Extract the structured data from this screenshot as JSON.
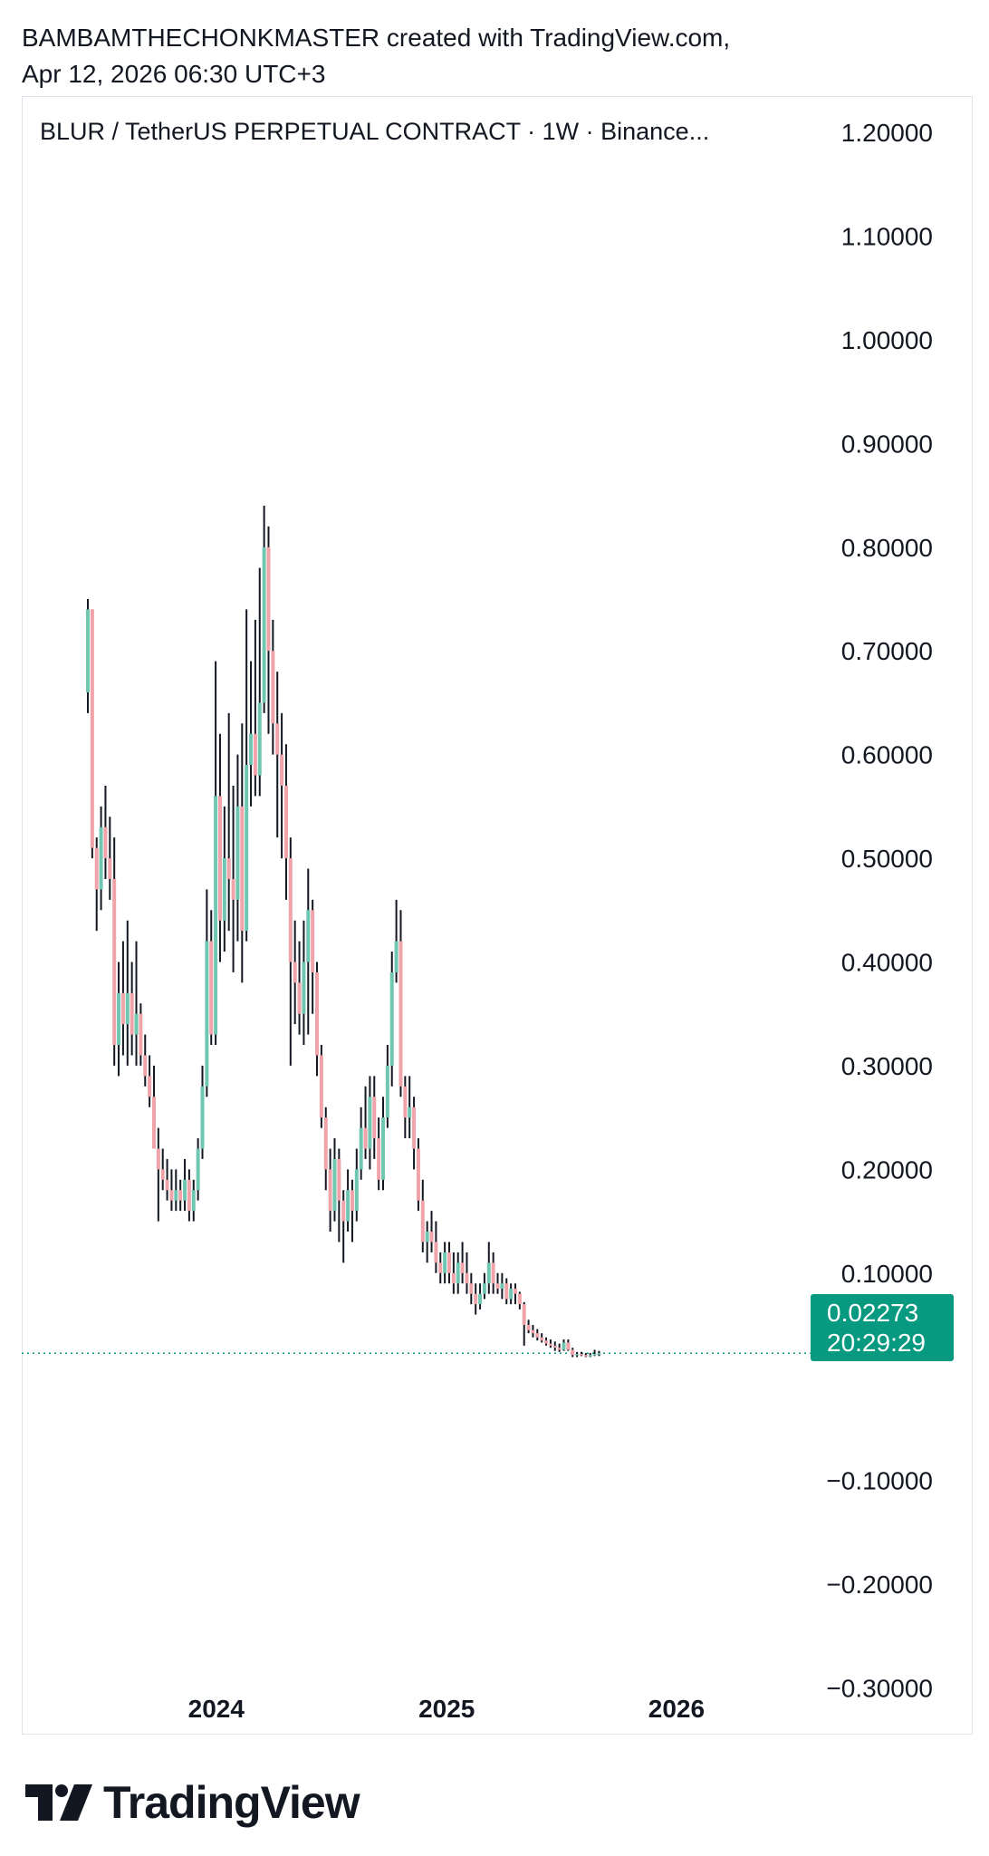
{
  "header": {
    "line1": "BAMBAMTHECHONKMASTER created with TradingView.com,",
    "line2": "Apr 12, 2026 06:30 UTC+3"
  },
  "symbol_title": "BLUR / TetherUS PERPETUAL CONTRACT · 1W · Binance...",
  "last_price": {
    "price": "0.02273",
    "countdown": "20:29:29",
    "color": "#089981"
  },
  "logo": {
    "icon": "tradingview-logo-icon",
    "text": "TradingView"
  },
  "colors": {
    "up": "#6fc7b2",
    "down": "#f0a3a8",
    "wick": "#131722",
    "last_price_line": "#089981"
  },
  "chart_data": {
    "type": "candlestick",
    "title": "BLUR / TetherUS PERPETUAL CONTRACT · 1W · Binance...",
    "interval": "1W",
    "x_tick_labels": [
      "2024",
      "2025",
      "2026"
    ],
    "x_tick_dates": [
      "2024-01-01",
      "2025-01-01",
      "2026-01-01"
    ],
    "y_tick_labels": [
      "1.20000",
      "1.10000",
      "1.00000",
      "0.90000",
      "0.80000",
      "0.70000",
      "0.60000",
      "0.50000",
      "0.40000",
      "0.30000",
      "0.20000",
      "0.10000",
      "−0.10000",
      "−0.20000",
      "−0.30000"
    ],
    "y_tick_values": [
      1.2,
      1.1,
      1.0,
      0.9,
      0.8,
      0.7,
      0.6,
      0.5,
      0.4,
      0.3,
      0.2,
      0.1,
      -0.1,
      -0.2,
      -0.3
    ],
    "ylim": [
      -0.345,
      1.235
    ],
    "xlim": [
      "2023-02-26",
      "2026-08-02"
    ],
    "grid": false,
    "first_candle_date": "2023-06-11",
    "last_price": 0.02273,
    "ohlc": [
      [
        0.66,
        0.75,
        0.64,
        0.74
      ],
      [
        0.74,
        0.74,
        0.5,
        0.51
      ],
      [
        0.51,
        0.52,
        0.43,
        0.47
      ],
      [
        0.47,
        0.55,
        0.45,
        0.53
      ],
      [
        0.53,
        0.57,
        0.48,
        0.5
      ],
      [
        0.5,
        0.54,
        0.46,
        0.48
      ],
      [
        0.48,
        0.52,
        0.3,
        0.32
      ],
      [
        0.32,
        0.4,
        0.29,
        0.37
      ],
      [
        0.37,
        0.42,
        0.31,
        0.34
      ],
      [
        0.34,
        0.44,
        0.3,
        0.37
      ],
      [
        0.37,
        0.4,
        0.31,
        0.33
      ],
      [
        0.33,
        0.42,
        0.3,
        0.35
      ],
      [
        0.35,
        0.36,
        0.3,
        0.31
      ],
      [
        0.31,
        0.33,
        0.28,
        0.29
      ],
      [
        0.29,
        0.31,
        0.26,
        0.27
      ],
      [
        0.27,
        0.3,
        0.22,
        0.22
      ],
      [
        0.22,
        0.24,
        0.15,
        0.2
      ],
      [
        0.2,
        0.22,
        0.18,
        0.19
      ],
      [
        0.19,
        0.21,
        0.17,
        0.18
      ],
      [
        0.18,
        0.2,
        0.16,
        0.17
      ],
      [
        0.17,
        0.2,
        0.16,
        0.18
      ],
      [
        0.18,
        0.19,
        0.16,
        0.17
      ],
      [
        0.17,
        0.21,
        0.16,
        0.19
      ],
      [
        0.19,
        0.2,
        0.15,
        0.16
      ],
      [
        0.16,
        0.19,
        0.15,
        0.18
      ],
      [
        0.18,
        0.23,
        0.17,
        0.22
      ],
      [
        0.22,
        0.3,
        0.21,
        0.28
      ],
      [
        0.28,
        0.47,
        0.27,
        0.42
      ],
      [
        0.42,
        0.45,
        0.32,
        0.33
      ],
      [
        0.33,
        0.69,
        0.32,
        0.56
      ],
      [
        0.56,
        0.62,
        0.4,
        0.44
      ],
      [
        0.44,
        0.55,
        0.41,
        0.5
      ],
      [
        0.5,
        0.64,
        0.43,
        0.48
      ],
      [
        0.48,
        0.57,
        0.39,
        0.46
      ],
      [
        0.46,
        0.6,
        0.42,
        0.55
      ],
      [
        0.55,
        0.63,
        0.38,
        0.43
      ],
      [
        0.43,
        0.74,
        0.42,
        0.59
      ],
      [
        0.59,
        0.69,
        0.55,
        0.62
      ],
      [
        0.62,
        0.73,
        0.56,
        0.58
      ],
      [
        0.58,
        0.78,
        0.56,
        0.65
      ],
      [
        0.65,
        0.84,
        0.64,
        0.8
      ],
      [
        0.8,
        0.82,
        0.62,
        0.7
      ],
      [
        0.7,
        0.73,
        0.6,
        0.63
      ],
      [
        0.63,
        0.68,
        0.52,
        0.6
      ],
      [
        0.6,
        0.64,
        0.5,
        0.57
      ],
      [
        0.57,
        0.61,
        0.46,
        0.5
      ],
      [
        0.5,
        0.52,
        0.3,
        0.4
      ],
      [
        0.4,
        0.44,
        0.34,
        0.38
      ],
      [
        0.38,
        0.42,
        0.33,
        0.35
      ],
      [
        0.35,
        0.44,
        0.32,
        0.4
      ],
      [
        0.4,
        0.49,
        0.33,
        0.45
      ],
      [
        0.45,
        0.46,
        0.35,
        0.39
      ],
      [
        0.39,
        0.4,
        0.29,
        0.31
      ],
      [
        0.31,
        0.32,
        0.24,
        0.25
      ],
      [
        0.25,
        0.26,
        0.18,
        0.2
      ],
      [
        0.2,
        0.22,
        0.14,
        0.16
      ],
      [
        0.16,
        0.23,
        0.15,
        0.21
      ],
      [
        0.21,
        0.22,
        0.13,
        0.17
      ],
      [
        0.17,
        0.18,
        0.11,
        0.15
      ],
      [
        0.15,
        0.2,
        0.14,
        0.18
      ],
      [
        0.18,
        0.19,
        0.13,
        0.16
      ],
      [
        0.16,
        0.22,
        0.15,
        0.2
      ],
      [
        0.2,
        0.26,
        0.19,
        0.24
      ],
      [
        0.24,
        0.28,
        0.21,
        0.22
      ],
      [
        0.22,
        0.29,
        0.2,
        0.27
      ],
      [
        0.27,
        0.29,
        0.21,
        0.23
      ],
      [
        0.23,
        0.25,
        0.18,
        0.19
      ],
      [
        0.19,
        0.27,
        0.18,
        0.25
      ],
      [
        0.25,
        0.32,
        0.24,
        0.3
      ],
      [
        0.3,
        0.41,
        0.28,
        0.39
      ],
      [
        0.39,
        0.46,
        0.38,
        0.42
      ],
      [
        0.42,
        0.45,
        0.27,
        0.28
      ],
      [
        0.28,
        0.29,
        0.23,
        0.25
      ],
      [
        0.25,
        0.29,
        0.23,
        0.26
      ],
      [
        0.26,
        0.27,
        0.2,
        0.22
      ],
      [
        0.22,
        0.23,
        0.16,
        0.17
      ],
      [
        0.17,
        0.19,
        0.12,
        0.13
      ],
      [
        0.13,
        0.15,
        0.11,
        0.14
      ],
      [
        0.14,
        0.16,
        0.12,
        0.13
      ],
      [
        0.13,
        0.15,
        0.1,
        0.11
      ],
      [
        0.11,
        0.12,
        0.09,
        0.1
      ],
      [
        0.1,
        0.13,
        0.09,
        0.12
      ],
      [
        0.12,
        0.13,
        0.09,
        0.1
      ],
      [
        0.1,
        0.12,
        0.08,
        0.09
      ],
      [
        0.09,
        0.12,
        0.08,
        0.11
      ],
      [
        0.11,
        0.13,
        0.09,
        0.1
      ],
      [
        0.1,
        0.12,
        0.08,
        0.09
      ],
      [
        0.09,
        0.1,
        0.07,
        0.08
      ],
      [
        0.08,
        0.09,
        0.06,
        0.07
      ],
      [
        0.07,
        0.09,
        0.065,
        0.08
      ],
      [
        0.08,
        0.1,
        0.075,
        0.09
      ],
      [
        0.09,
        0.13,
        0.08,
        0.11
      ],
      [
        0.11,
        0.12,
        0.08,
        0.09
      ],
      [
        0.09,
        0.1,
        0.08,
        0.085
      ],
      [
        0.085,
        0.1,
        0.075,
        0.09
      ],
      [
        0.09,
        0.095,
        0.07,
        0.075
      ],
      [
        0.075,
        0.09,
        0.07,
        0.085
      ],
      [
        0.085,
        0.09,
        0.07,
        0.08
      ],
      [
        0.08,
        0.082,
        0.065,
        0.07
      ],
      [
        0.07,
        0.072,
        0.03,
        0.05
      ],
      [
        0.05,
        0.055,
        0.042,
        0.045
      ],
      [
        0.045,
        0.05,
        0.038,
        0.042
      ],
      [
        0.042,
        0.046,
        0.035,
        0.038
      ],
      [
        0.038,
        0.042,
        0.033,
        0.035
      ],
      [
        0.035,
        0.038,
        0.03,
        0.032
      ],
      [
        0.032,
        0.036,
        0.028,
        0.03
      ],
      [
        0.03,
        0.034,
        0.025,
        0.028
      ],
      [
        0.028,
        0.032,
        0.024,
        0.026
      ],
      [
        0.026,
        0.036,
        0.025,
        0.033
      ],
      [
        0.033,
        0.036,
        0.025,
        0.026
      ],
      [
        0.026,
        0.028,
        0.019,
        0.021
      ],
      [
        0.021,
        0.024,
        0.019,
        0.022
      ],
      [
        0.022,
        0.024,
        0.02,
        0.021
      ],
      [
        0.021,
        0.023,
        0.019,
        0.02
      ],
      [
        0.02,
        0.023,
        0.019,
        0.021
      ],
      [
        0.021,
        0.026,
        0.02,
        0.022
      ],
      [
        0.022,
        0.025,
        0.02,
        0.02273
      ]
    ]
  }
}
